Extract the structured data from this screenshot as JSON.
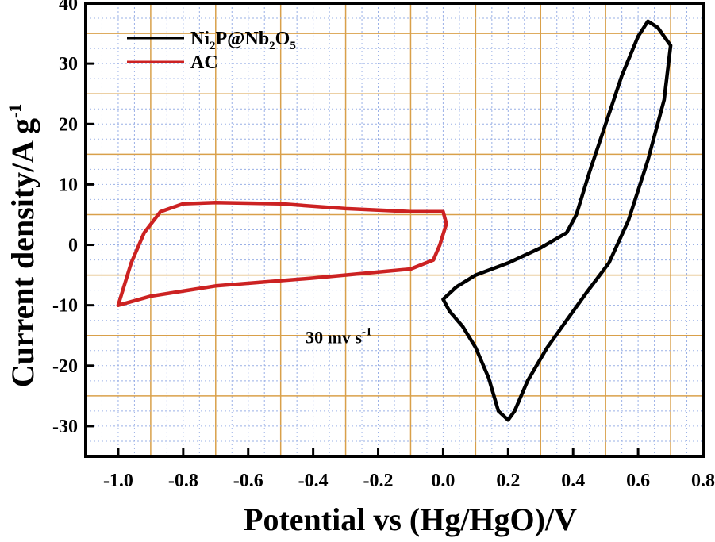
{
  "chart_data": {
    "type": "line",
    "xlabel": "Potential vs (Hg/HgO)/V",
    "ylabel_base": "Current density/A g",
    "ylabel_sup": "-1",
    "xlim": [
      -1.1,
      0.8
    ],
    "ylim": [
      -35,
      40
    ],
    "x_ticks": [
      -1.0,
      -0.8,
      -0.6,
      -0.4,
      -0.2,
      0.0,
      0.2,
      0.4,
      0.6,
      0.8
    ],
    "x_tick_labels": [
      "-1.0",
      "-0.8",
      "-0.6",
      "-0.4",
      "-0.2",
      "0.0",
      "0.2",
      "0.4",
      "0.6",
      "0.8"
    ],
    "y_ticks": [
      -30,
      -20,
      -10,
      0,
      10,
      20,
      30,
      40
    ],
    "y_tick_labels": [
      "-30",
      "-20",
      "-10",
      "0",
      "10",
      "20",
      "30",
      "40"
    ],
    "grid": true,
    "legend_position": "top-left",
    "annotation": {
      "text": "30 mv s",
      "sup": "-1",
      "x": -0.35,
      "y": -15.5
    },
    "legend": [
      {
        "parts": [
          [
            "Ni",
            ""
          ],
          [
            "2",
            "sub"
          ],
          [
            "P@Nb",
            ""
          ],
          [
            "2",
            "sub"
          ],
          [
            "O",
            ""
          ],
          [
            "5",
            "sub"
          ]
        ],
        "color": "#000000"
      },
      {
        "parts": [
          [
            "AC",
            ""
          ]
        ],
        "color": "#cc2222"
      }
    ],
    "series": [
      {
        "color": "#000000",
        "points": [
          [
            0.0,
            -9.0
          ],
          [
            0.04,
            -7.0
          ],
          [
            0.1,
            -5.0
          ],
          [
            0.2,
            -3.0
          ],
          [
            0.3,
            -0.5
          ],
          [
            0.38,
            2.0
          ],
          [
            0.41,
            5.0
          ],
          [
            0.45,
            12.0
          ],
          [
            0.5,
            20.0
          ],
          [
            0.55,
            28.0
          ],
          [
            0.6,
            34.5
          ],
          [
            0.63,
            37.0
          ],
          [
            0.66,
            36.0
          ],
          [
            0.7,
            33.0
          ],
          [
            0.68,
            24.0
          ],
          [
            0.63,
            14.0
          ],
          [
            0.57,
            4.0
          ],
          [
            0.51,
            -3.0
          ],
          [
            0.44,
            -8.0
          ],
          [
            0.38,
            -12.5
          ],
          [
            0.32,
            -17.0
          ],
          [
            0.26,
            -22.5
          ],
          [
            0.22,
            -27.5
          ],
          [
            0.2,
            -29.0
          ],
          [
            0.17,
            -27.5
          ],
          [
            0.14,
            -22.0
          ],
          [
            0.1,
            -17.0
          ],
          [
            0.06,
            -13.5
          ],
          [
            0.02,
            -11.0
          ],
          [
            0.0,
            -9.0
          ]
        ]
      },
      {
        "color": "#cc2222",
        "points": [
          [
            -1.0,
            -10.0
          ],
          [
            -0.96,
            -3.0
          ],
          [
            -0.92,
            2.0
          ],
          [
            -0.87,
            5.5
          ],
          [
            -0.8,
            6.8
          ],
          [
            -0.7,
            7.0
          ],
          [
            -0.5,
            6.8
          ],
          [
            -0.3,
            6.0
          ],
          [
            -0.1,
            5.5
          ],
          [
            0.0,
            5.5
          ],
          [
            0.01,
            3.5
          ],
          [
            -0.01,
            0.0
          ],
          [
            -0.03,
            -2.5
          ],
          [
            -0.1,
            -4.0
          ],
          [
            -0.4,
            -5.5
          ],
          [
            -0.7,
            -6.8
          ],
          [
            -0.9,
            -8.5
          ],
          [
            -1.0,
            -10.0
          ]
        ]
      }
    ]
  }
}
